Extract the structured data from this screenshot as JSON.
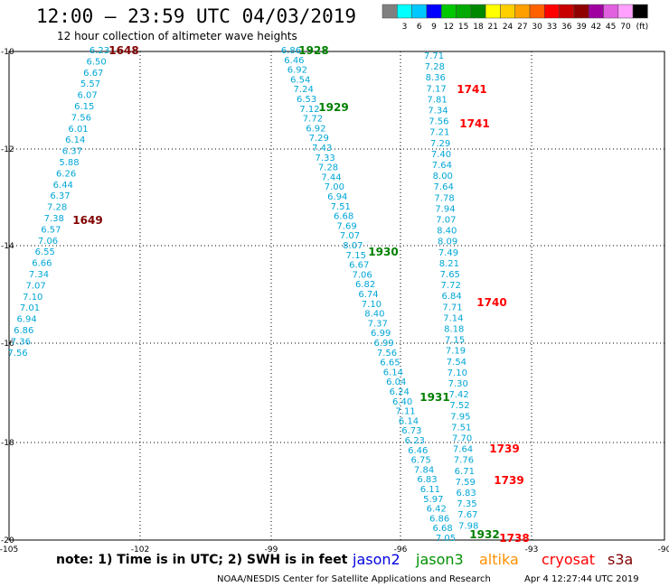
{
  "header": {
    "title": "12:00 – 23:59 UTC 04/03/2019",
    "subtitle": "12 hour collection of altimeter wave heights"
  },
  "colorbar": {
    "unit": "(ft)",
    "swatches": [
      {
        "color": "#808080",
        "label": ""
      },
      {
        "color": "#00ffff",
        "label": "3"
      },
      {
        "color": "#00c8ff",
        "label": "6"
      },
      {
        "color": "#0000ff",
        "label": "9"
      },
      {
        "color": "#00c800",
        "label": "12"
      },
      {
        "color": "#00aa00",
        "label": "15"
      },
      {
        "color": "#008800",
        "label": "18"
      },
      {
        "color": "#ffff00",
        "label": "21"
      },
      {
        "color": "#ffd000",
        "label": "24"
      },
      {
        "color": "#ffa000",
        "label": "27"
      },
      {
        "color": "#ff6000",
        "label": "30"
      },
      {
        "color": "#ff0000",
        "label": "33"
      },
      {
        "color": "#c80000",
        "label": "36"
      },
      {
        "color": "#900000",
        "label": "39"
      },
      {
        "color": "#a000a0",
        "label": "42"
      },
      {
        "color": "#e060e0",
        "label": "45"
      },
      {
        "color": "#ffa0ff",
        "label": "70"
      },
      {
        "color": "#000000",
        "label": ""
      }
    ]
  },
  "map": {
    "lon_range": [
      -105,
      -90
    ],
    "lat_range": [
      -20,
      -10
    ],
    "lon_ticks": [
      "-105",
      "-102",
      "-99",
      "-96",
      "-93",
      "-90"
    ],
    "lat_ticks": [
      "-10",
      "-12",
      "-14",
      "-16",
      "-18",
      "-20"
    ],
    "track_color": "#00a6d6",
    "tracks": [
      {
        "values": [
          "6.23",
          "6.50",
          "6.67",
          "5.57",
          "6.07",
          "6.15",
          "7.56",
          "6.01",
          "6.14",
          "6.37",
          "5.88",
          "6.26",
          "6.44",
          "6.37",
          "7.28",
          "7.38",
          "6.57",
          "7.06",
          "6.55",
          "6.66",
          "7.34",
          "7.07",
          "7.10",
          "7.01",
          "6.94",
          "6.86",
          "7.36",
          "7.56"
        ]
      },
      {
        "values": [
          "6.86",
          "6.46",
          "6.92",
          "6.54",
          "7.24",
          "6.53",
          "7.12",
          "7.72",
          "6.92",
          "7.29",
          "7.43",
          "7.33",
          "7.28",
          "7.44",
          "7.00",
          "6.94",
          "7.51",
          "6.68",
          "7.69",
          "7.07",
          "8.07",
          "7.15",
          "6.67",
          "7.06",
          "6.82",
          "6.74",
          "7.10",
          "8.40",
          "7.37",
          "6.99",
          "6.99",
          "7.56",
          "6.65",
          "6.14",
          "6.04",
          "6.24",
          "6.40",
          "7.11",
          "6.14",
          "6.73",
          "6.23",
          "6.46",
          "6.75",
          "7.84",
          "6.83",
          "6.11",
          "5.97",
          "6.42",
          "6.86",
          "6.68",
          "7.05"
        ]
      },
      {
        "values": [
          "7.71",
          "7.28",
          "8.36",
          "7.17",
          "7.81",
          "7.34",
          "7.56",
          "7.21",
          "7.29",
          "7.40",
          "7.64",
          "8.00",
          "7.64",
          "7.78",
          "7.94",
          "7.07",
          "8.40",
          "8.09",
          "7.49",
          "8.21",
          "7.65",
          "7.72",
          "6.84",
          "7.71",
          "7.14",
          "8.18",
          "7.15",
          "7.19",
          "7.54",
          "7.10",
          "7.30",
          "7.42",
          "7.52",
          "7.95",
          "7.51",
          "7.70",
          "7.64",
          "7.76",
          "6.71",
          "7.59",
          "6.83",
          "7.35",
          "7.67",
          "7.98"
        ]
      }
    ],
    "time_labels": [
      {
        "text": "1648",
        "color": "#800000"
      },
      {
        "text": "1649",
        "color": "#800000"
      },
      {
        "text": "1928",
        "color": "#008000"
      },
      {
        "text": "1929",
        "color": "#008000"
      },
      {
        "text": "1930",
        "color": "#008000"
      },
      {
        "text": "1931",
        "color": "#008000"
      },
      {
        "text": "1932",
        "color": "#008000"
      },
      {
        "text": "1741",
        "color": "#ff0000"
      },
      {
        "text": "1741",
        "color": "#ff0000"
      },
      {
        "text": "1740",
        "color": "#ff0000"
      },
      {
        "text": "1739",
        "color": "#ff0000"
      },
      {
        "text": "1739",
        "color": "#ff0000"
      },
      {
        "text": "1738",
        "color": "#ff0000"
      }
    ]
  },
  "footer": {
    "note": "note:  1) Time is in UTC;  2) SWH is in feet",
    "satellites": [
      {
        "name": "jason2",
        "color": "#0000e0"
      },
      {
        "name": "jason3",
        "color": "#009000"
      },
      {
        "name": "altika",
        "color": "#ff9000"
      },
      {
        "name": "cryosat",
        "color": "#ff0000"
      },
      {
        "name": "s3a",
        "color": "#800000"
      }
    ],
    "credit": "NOAA/NESDIS Center for Satellite Applications and Research",
    "timestamp": "Apr  4 12:27:44 UTC 2019"
  }
}
